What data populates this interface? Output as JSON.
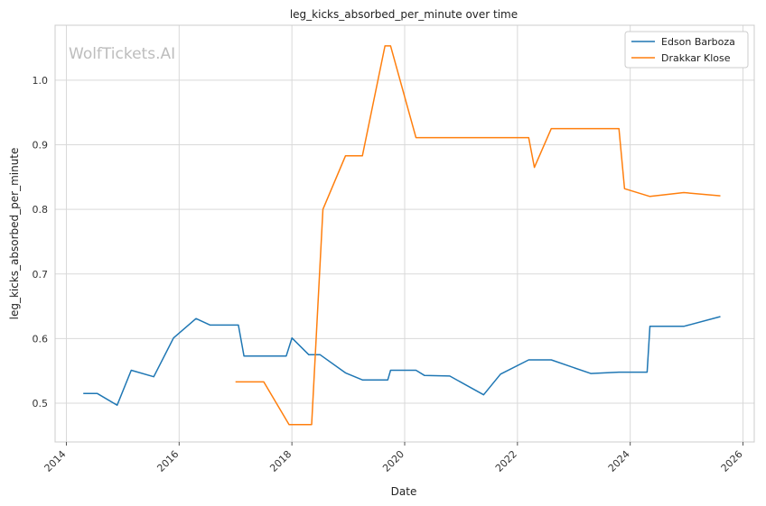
{
  "chart_data": {
    "type": "line",
    "title": "leg_kicks_absorbed_per_minute over time",
    "xlabel": "Date",
    "ylabel": "leg_kicks_absorbed_per_minute",
    "watermark": "WolfTickets.AI",
    "xlim": [
      2013.8,
      2026.2
    ],
    "ylim": [
      0.44,
      1.085
    ],
    "xticks": [
      2014,
      2016,
      2018,
      2020,
      2022,
      2024,
      2026
    ],
    "yticks": [
      0.5,
      0.6,
      0.7,
      0.8,
      0.9,
      1.0
    ],
    "grid": true,
    "legend_position": "top-right",
    "series": [
      {
        "name": "Edson Barboza",
        "color": "#1f77b4",
        "points": [
          [
            2014.3,
            0.515
          ],
          [
            2014.55,
            0.515
          ],
          [
            2014.9,
            0.497
          ],
          [
            2015.15,
            0.551
          ],
          [
            2015.55,
            0.541
          ],
          [
            2015.9,
            0.601
          ],
          [
            2016.3,
            0.631
          ],
          [
            2016.55,
            0.621
          ],
          [
            2017.05,
            0.621
          ],
          [
            2017.15,
            0.573
          ],
          [
            2017.9,
            0.573
          ],
          [
            2018.0,
            0.601
          ],
          [
            2018.3,
            0.575
          ],
          [
            2018.5,
            0.575
          ],
          [
            2018.95,
            0.547
          ],
          [
            2019.25,
            0.536
          ],
          [
            2019.7,
            0.536
          ],
          [
            2019.75,
            0.551
          ],
          [
            2020.2,
            0.551
          ],
          [
            2020.35,
            0.543
          ],
          [
            2020.8,
            0.542
          ],
          [
            2021.4,
            0.513
          ],
          [
            2021.7,
            0.545
          ],
          [
            2022.2,
            0.567
          ],
          [
            2022.6,
            0.567
          ],
          [
            2023.3,
            0.546
          ],
          [
            2023.8,
            0.548
          ],
          [
            2024.3,
            0.548
          ],
          [
            2024.35,
            0.619
          ],
          [
            2024.95,
            0.619
          ],
          [
            2025.6,
            0.634
          ]
        ]
      },
      {
        "name": "Drakkar Klose",
        "color": "#ff7f0e",
        "points": [
          [
            2017.0,
            0.533
          ],
          [
            2017.5,
            0.533
          ],
          [
            2017.95,
            0.467
          ],
          [
            2018.35,
            0.467
          ],
          [
            2018.55,
            0.8
          ],
          [
            2018.95,
            0.883
          ],
          [
            2019.25,
            0.883
          ],
          [
            2019.65,
            1.053
          ],
          [
            2019.75,
            1.053
          ],
          [
            2020.2,
            0.911
          ],
          [
            2022.2,
            0.911
          ],
          [
            2022.3,
            0.865
          ],
          [
            2022.6,
            0.925
          ],
          [
            2023.8,
            0.925
          ],
          [
            2023.9,
            0.832
          ],
          [
            2024.35,
            0.82
          ],
          [
            2024.95,
            0.826
          ],
          [
            2025.6,
            0.821
          ]
        ]
      }
    ]
  }
}
